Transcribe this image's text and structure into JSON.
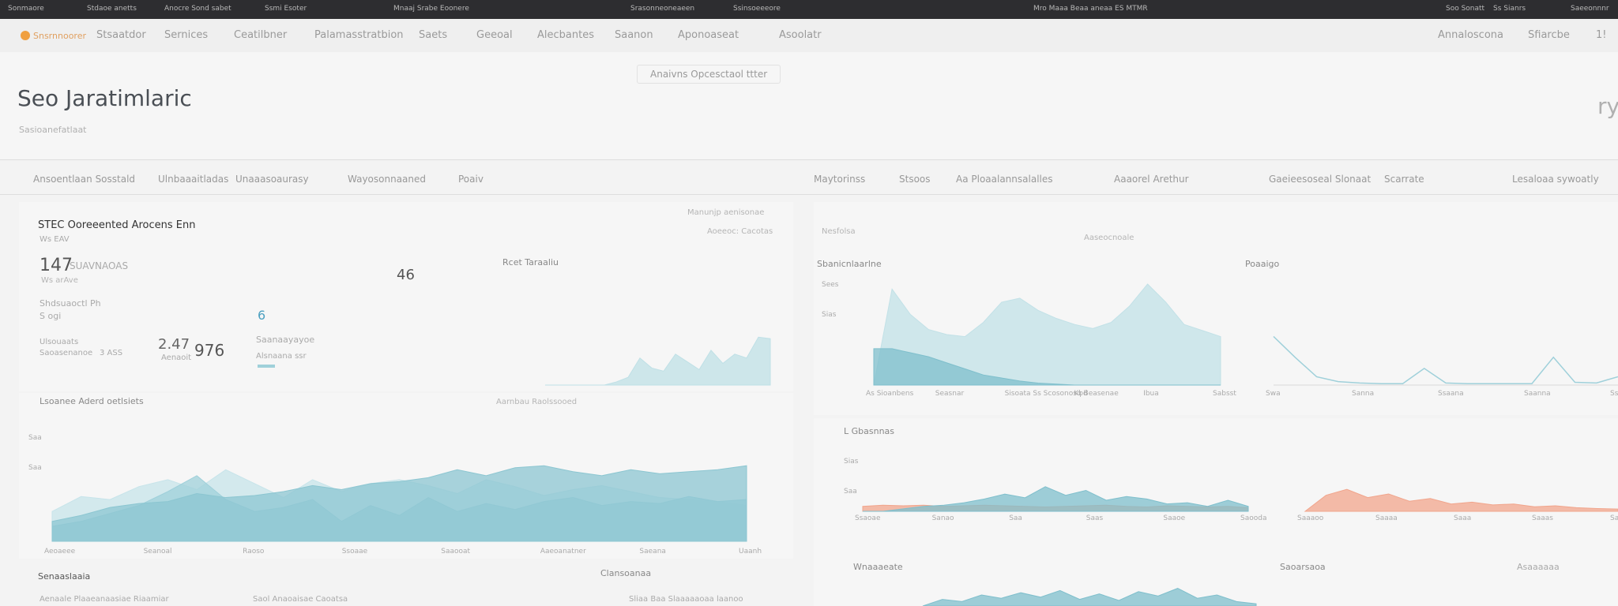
{
  "top_bar": {
    "items": [
      "Sonmaore",
      "Stdaoe anetts",
      "Anocre Sond sabet",
      "Ssmi Esoter",
      "Mnaaj Srabe Eoonere",
      "Srasonneoneaeen",
      "Ssinsoeeeore",
      "Mro Maaa Beaa aneaa ES MTMR",
      "Soo Sonatt",
      "Ss  Sianrs",
      "Saeeonnnr"
    ]
  },
  "nav": {
    "brand": "Snsrnnoorer",
    "items": [
      "Stsaatdor",
      "Sernices",
      "Ceatilbner",
      "Palamasstratbion",
      "Saets",
      "Geeoal",
      "Alecbantes",
      "Saanon",
      "Aponoaseat",
      "Asoolatr"
    ],
    "right": [
      "Annaloscona",
      "Sfiarcbe",
      "1!"
    ]
  },
  "header": {
    "title": "Seo Jaratimlaric",
    "subtitle": "Sasioanefatlaat",
    "button": "Anaivns Opcesctaol ttter",
    "corner": "ry"
  },
  "tabs": [
    "Ansoentlaan Sosstald",
    "Ulnbaaaitladas",
    "Unaaasoaurasy",
    "Wayosonnaaned",
    "Poaiv",
    "Maytorinss",
    "Stsoos",
    "Aa Ploaalannsalalles",
    "Aaaorel Arethur",
    "Gaeieesoseal Slonaat",
    "Scarrate",
    "Lesaloaa sywoatly"
  ],
  "kpi": {
    "title": "STEC Ooreeented Arocens Enn",
    "subtitle": "Ws EAV",
    "big": 147,
    "big_label": "SUAVNAOAS",
    "big_sub": "Ws arAve",
    "mid": 46,
    "line1": "Shdsuaoctl Ph",
    "line1_sub": "S ogi",
    "small_label": "Ulsouaats",
    "small_sub": "Saoasenanoe",
    "small_val": "3 ASS",
    "val2": 2.47,
    "val2_label": "Aenaoit",
    "val3": 976,
    "val4": 6,
    "val4_label": "Saanaayayoe",
    "val4_sub": "Alsnaana ssr"
  },
  "charts": [
    {
      "type": "area",
      "title": "Rcet Taraaliu",
      "caption": "Manunjp aenisonae",
      "caption2": "Aoeeoc: Cacotas",
      "ylim": [
        0,
        100
      ],
      "series": [
        {
          "color": "#bfe0e6",
          "values": [
            0,
            0,
            0,
            0,
            0,
            0,
            4,
            10,
            35,
            22,
            18,
            40,
            30,
            20,
            45,
            28,
            40,
            35,
            62,
            60
          ]
        }
      ]
    },
    {
      "type": "area",
      "title": "Lsoanee Aderd oetlsiets",
      "caption": "Aarnbau Raolssooed",
      "ylim": [
        0,
        100
      ],
      "x_labels": [
        "Aeoaeee",
        "Seanoal",
        "Raoso",
        "Ssoaae",
        "Saaooat",
        "Aaeoanatner",
        "Saeana",
        "Uaanh"
      ],
      "y_labels": [
        "Saa",
        "Saa"
      ],
      "series": [
        {
          "color": "#c7e4ea",
          "values": [
            30,
            45,
            42,
            55,
            62,
            52,
            72,
            58,
            44,
            62,
            50,
            58,
            62,
            56,
            48,
            62,
            55,
            46,
            52,
            56,
            50,
            44,
            42,
            40,
            36
          ]
        },
        {
          "color": "#9fd0da",
          "values": [
            15,
            20,
            28,
            36,
            50,
            66,
            42,
            30,
            34,
            42,
            20,
            36,
            26,
            44,
            30,
            38,
            32,
            40,
            44,
            36,
            40,
            38,
            45,
            40,
            42
          ]
        },
        {
          "color": "#8cc6d1",
          "values": [
            20,
            26,
            34,
            38,
            40,
            48,
            44,
            46,
            50,
            56,
            52,
            58,
            60,
            64,
            72,
            66,
            74,
            76,
            70,
            66,
            72,
            68,
            70,
            72,
            76
          ]
        }
      ]
    },
    {
      "type": "area",
      "title": "Sbanicnlaarlne",
      "caption": "Aaseocnoale",
      "caption2": "Nesfolsa",
      "ylim": [
        0,
        100
      ],
      "x_labels": [
        "As Sioanbens",
        "Seasnar",
        "Sisoata Ss Scosonosq Beasenae",
        "Kbd",
        "Ibua",
        "Sabsst"
      ],
      "y_labels": [
        "Sees",
        "Sias"
      ],
      "series": [
        {
          "color": "#c2e1e7",
          "values": [
            0,
            95,
            70,
            55,
            50,
            48,
            62,
            82,
            86,
            74,
            66,
            60,
            56,
            62,
            78,
            100,
            82,
            60,
            54,
            48
          ]
        },
        {
          "color": "#7fbfcc",
          "values": [
            36,
            36,
            32,
            28,
            22,
            16,
            10,
            7,
            4,
            2,
            1,
            0,
            0,
            0,
            0,
            0,
            0,
            0,
            0,
            0
          ]
        }
      ]
    },
    {
      "type": "line",
      "title": "Poaaigo",
      "ylim": [
        0,
        100
      ],
      "x_labels": [
        "Swa",
        "Sanna",
        "Ssaana",
        "Saanna",
        "Sss"
      ],
      "series": [
        {
          "color": "#9fd0da",
          "values": [
            70,
            40,
            12,
            5,
            3,
            2,
            2,
            24,
            3,
            2,
            2,
            2,
            2,
            40,
            4,
            3,
            12
          ]
        }
      ]
    },
    {
      "type": "area",
      "title": "L Gbasnnas",
      "ylim": [
        0,
        100
      ],
      "x_labels": [
        "Ssaoae",
        "Sanao",
        "Saa",
        "Saas",
        "Saaoe",
        "Saooda"
      ],
      "y_labels": [
        "Sias",
        "Saa"
      ],
      "series": [
        {
          "color": "#f1a58c",
          "values": [
            8,
            10,
            9,
            10,
            8,
            9,
            10,
            9,
            8,
            7,
            8,
            9,
            10,
            8,
            7,
            9,
            8,
            7,
            8,
            6
          ]
        },
        {
          "color": "#7fbfcc",
          "values": [
            0,
            0,
            4,
            8,
            10,
            14,
            20,
            28,
            22,
            40,
            26,
            34,
            18,
            24,
            20,
            12,
            14,
            8,
            18,
            8
          ]
        }
      ]
    },
    {
      "type": "area",
      "title": "Saoarsaoa",
      "ylim": [
        0,
        100
      ],
      "x_labels": [
        "Saaaoo",
        "Saaaa",
        "Saaa",
        "Saaas",
        "Saaoo"
      ],
      "series": [
        {
          "color": "#f1a58c",
          "values": [
            0,
            35,
            48,
            30,
            38,
            22,
            28,
            16,
            20,
            14,
            16,
            10,
            12,
            8,
            6,
            5
          ]
        }
      ]
    },
    {
      "type": "area",
      "title": "Wnaaaeate",
      "ylim": [
        0,
        100
      ],
      "series": [
        {
          "color": "#7fbfcc",
          "values": [
            0,
            30,
            20,
            50,
            35,
            60,
            40,
            70,
            30,
            55,
            25,
            65,
            45,
            80,
            35,
            50,
            20,
            10
          ]
        }
      ]
    }
  ],
  "footer": {
    "left": "Senaaslaaia",
    "left2": "Aenaale Plaaeanaasiae Riaamiar",
    "mid": "Clansoanaa",
    "mid2": "Saol Anaoaisae Caoatsa",
    "mid3": "Sliaa Baa Slaaaaaoaa laanoo",
    "right": "Asaaaaaa"
  }
}
